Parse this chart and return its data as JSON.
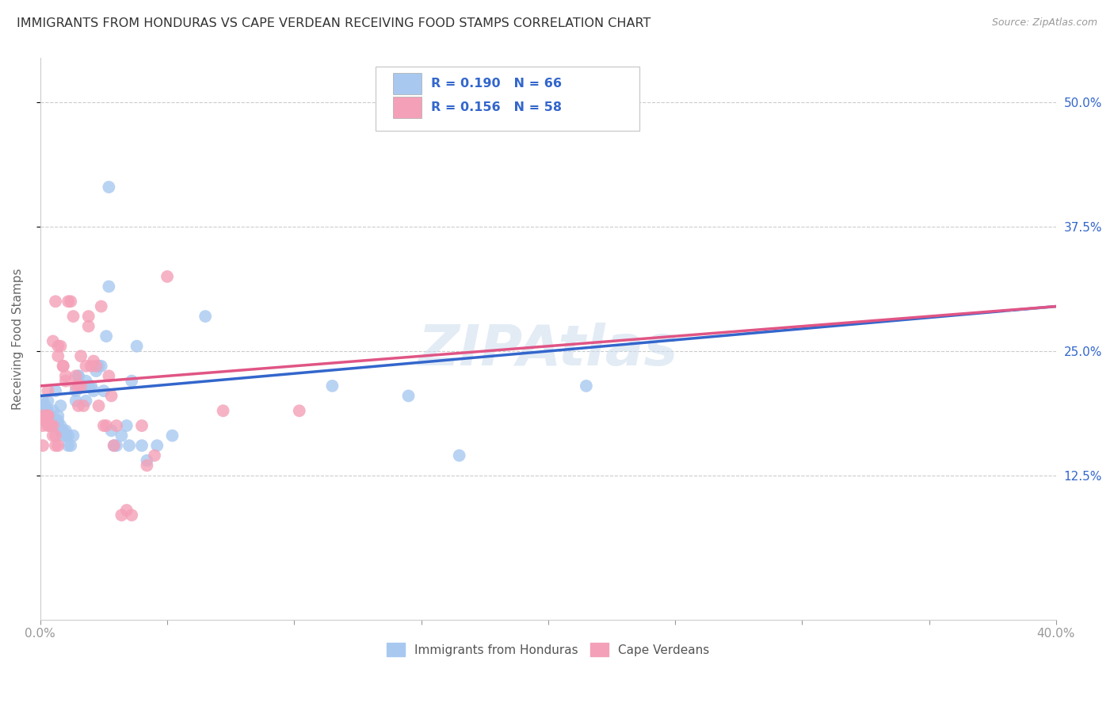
{
  "title": "IMMIGRANTS FROM HONDURAS VS CAPE VERDEAN RECEIVING FOOD STAMPS CORRELATION CHART",
  "source": "Source: ZipAtlas.com",
  "ylabel": "Receiving Food Stamps",
  "ytick_labels": [
    "12.5%",
    "25.0%",
    "37.5%",
    "50.0%"
  ],
  "ytick_values": [
    0.125,
    0.25,
    0.375,
    0.5
  ],
  "xlim": [
    0.0,
    0.4
  ],
  "ylim": [
    -0.02,
    0.545
  ],
  "legend_label1": "Immigrants from Honduras",
  "legend_label2": "Cape Verdeans",
  "r1": 0.19,
  "n1": 66,
  "r2": 0.156,
  "n2": 58,
  "color_blue": "#a8c8f0",
  "color_pink": "#f4a0b8",
  "line_color_blue": "#3366cc",
  "line_color_pink": "#e05585",
  "line_color_blue_ext": "#aabbdd",
  "legend_text_color": "#3366cc",
  "blue_points": [
    [
      0.001,
      0.2
    ],
    [
      0.001,
      0.195
    ],
    [
      0.002,
      0.19
    ],
    [
      0.002,
      0.195
    ],
    [
      0.002,
      0.185
    ],
    [
      0.003,
      0.185
    ],
    [
      0.003,
      0.19
    ],
    [
      0.003,
      0.2
    ],
    [
      0.004,
      0.175
    ],
    [
      0.004,
      0.18
    ],
    [
      0.004,
      0.185
    ],
    [
      0.005,
      0.175
    ],
    [
      0.005,
      0.18
    ],
    [
      0.005,
      0.19
    ],
    [
      0.006,
      0.175
    ],
    [
      0.006,
      0.18
    ],
    [
      0.006,
      0.21
    ],
    [
      0.007,
      0.175
    ],
    [
      0.007,
      0.18
    ],
    [
      0.007,
      0.185
    ],
    [
      0.008,
      0.17
    ],
    [
      0.008,
      0.175
    ],
    [
      0.008,
      0.195
    ],
    [
      0.009,
      0.165
    ],
    [
      0.009,
      0.17
    ],
    [
      0.01,
      0.165
    ],
    [
      0.01,
      0.17
    ],
    [
      0.011,
      0.165
    ],
    [
      0.011,
      0.155
    ],
    [
      0.012,
      0.155
    ],
    [
      0.013,
      0.165
    ],
    [
      0.014,
      0.2
    ],
    [
      0.014,
      0.21
    ],
    [
      0.015,
      0.225
    ],
    [
      0.015,
      0.225
    ],
    [
      0.016,
      0.215
    ],
    [
      0.017,
      0.215
    ],
    [
      0.018,
      0.2
    ],
    [
      0.018,
      0.22
    ],
    [
      0.019,
      0.215
    ],
    [
      0.02,
      0.215
    ],
    [
      0.021,
      0.21
    ],
    [
      0.022,
      0.23
    ],
    [
      0.023,
      0.235
    ],
    [
      0.024,
      0.235
    ],
    [
      0.025,
      0.21
    ],
    [
      0.026,
      0.265
    ],
    [
      0.027,
      0.315
    ],
    [
      0.027,
      0.415
    ],
    [
      0.028,
      0.17
    ],
    [
      0.029,
      0.155
    ],
    [
      0.03,
      0.155
    ],
    [
      0.032,
      0.165
    ],
    [
      0.034,
      0.175
    ],
    [
      0.035,
      0.155
    ],
    [
      0.036,
      0.22
    ],
    [
      0.038,
      0.255
    ],
    [
      0.04,
      0.155
    ],
    [
      0.042,
      0.14
    ],
    [
      0.046,
      0.155
    ],
    [
      0.052,
      0.165
    ],
    [
      0.065,
      0.285
    ],
    [
      0.115,
      0.215
    ],
    [
      0.145,
      0.205
    ],
    [
      0.165,
      0.145
    ],
    [
      0.215,
      0.215
    ]
  ],
  "pink_points": [
    [
      0.001,
      0.175
    ],
    [
      0.001,
      0.185
    ],
    [
      0.001,
      0.155
    ],
    [
      0.002,
      0.18
    ],
    [
      0.002,
      0.185
    ],
    [
      0.003,
      0.175
    ],
    [
      0.003,
      0.185
    ],
    [
      0.003,
      0.185
    ],
    [
      0.003,
      0.21
    ],
    [
      0.004,
      0.175
    ],
    [
      0.004,
      0.175
    ],
    [
      0.005,
      0.165
    ],
    [
      0.005,
      0.175
    ],
    [
      0.005,
      0.26
    ],
    [
      0.006,
      0.155
    ],
    [
      0.006,
      0.165
    ],
    [
      0.006,
      0.3
    ],
    [
      0.007,
      0.155
    ],
    [
      0.007,
      0.245
    ],
    [
      0.007,
      0.255
    ],
    [
      0.008,
      0.255
    ],
    [
      0.009,
      0.235
    ],
    [
      0.009,
      0.235
    ],
    [
      0.01,
      0.22
    ],
    [
      0.01,
      0.225
    ],
    [
      0.011,
      0.3
    ],
    [
      0.012,
      0.3
    ],
    [
      0.013,
      0.285
    ],
    [
      0.014,
      0.215
    ],
    [
      0.014,
      0.225
    ],
    [
      0.015,
      0.195
    ],
    [
      0.015,
      0.215
    ],
    [
      0.016,
      0.215
    ],
    [
      0.016,
      0.245
    ],
    [
      0.017,
      0.195
    ],
    [
      0.018,
      0.235
    ],
    [
      0.019,
      0.275
    ],
    [
      0.019,
      0.285
    ],
    [
      0.02,
      0.235
    ],
    [
      0.021,
      0.24
    ],
    [
      0.022,
      0.235
    ],
    [
      0.023,
      0.195
    ],
    [
      0.024,
      0.295
    ],
    [
      0.025,
      0.175
    ],
    [
      0.026,
      0.175
    ],
    [
      0.027,
      0.225
    ],
    [
      0.028,
      0.205
    ],
    [
      0.029,
      0.155
    ],
    [
      0.03,
      0.175
    ],
    [
      0.032,
      0.085
    ],
    [
      0.034,
      0.09
    ],
    [
      0.036,
      0.085
    ],
    [
      0.04,
      0.175
    ],
    [
      0.042,
      0.135
    ],
    [
      0.045,
      0.145
    ],
    [
      0.05,
      0.325
    ],
    [
      0.072,
      0.19
    ],
    [
      0.102,
      0.19
    ]
  ]
}
